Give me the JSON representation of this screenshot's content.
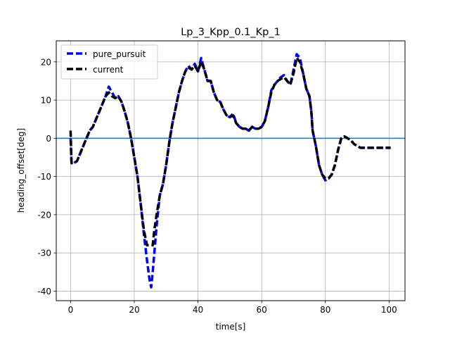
{
  "chart_data": {
    "type": "line",
    "title": "Lp_3_Kpp_0.1_Kp_1",
    "xlabel": "time[s]",
    "ylabel": "heading_offset[deg]",
    "xlim": [
      -4.5,
      105
    ],
    "ylim": [
      -42.5,
      25.5
    ],
    "xticks": [
      0,
      20,
      40,
      60,
      80,
      100
    ],
    "yticks": [
      -40,
      -30,
      -20,
      -10,
      0,
      10,
      20
    ],
    "grid": true,
    "legend_position": "upper-left",
    "hline": {
      "y": 0,
      "color": "#1f77b4"
    },
    "series": [
      {
        "name": "pure_pursuit",
        "color": "#0000ff",
        "linestyle": "dashed",
        "x": [
          0,
          0.3,
          1,
          2,
          3,
          4,
          5,
          6,
          7,
          8,
          9,
          10,
          11,
          12,
          13,
          14,
          15,
          16,
          17,
          18,
          19,
          20,
          21,
          22,
          23,
          24,
          24.8,
          25.3,
          25.8,
          26.3,
          27,
          28,
          29,
          30,
          31,
          32,
          33,
          34,
          35,
          36,
          37,
          38,
          39,
          40,
          41,
          42,
          43,
          44,
          45,
          46,
          47,
          48,
          49,
          50,
          51,
          52,
          53,
          54,
          55,
          56,
          57,
          58,
          59,
          60,
          61,
          62,
          63,
          64,
          65,
          66,
          67,
          68,
          69,
          70,
          71,
          72,
          73,
          74,
          75,
          75.6,
          76,
          77,
          78,
          79,
          80,
          81,
          82,
          83,
          84,
          85,
          86,
          87,
          88,
          89,
          90,
          91,
          92,
          93,
          94,
          95,
          96,
          97,
          98,
          99,
          100,
          100.5
        ],
        "y": [
          0,
          -6.5,
          -6.5,
          -6,
          -4,
          -2,
          0,
          2,
          3,
          5,
          7,
          9,
          11,
          13.5,
          12,
          10.5,
          11,
          9.5,
          7,
          4,
          0,
          -5,
          -10,
          -17,
          -25,
          -32,
          -37,
          -39,
          -35,
          -30,
          -23,
          -15,
          -12,
          -7,
          -1,
          4,
          8,
          12,
          15,
          17.5,
          19,
          18,
          19.5,
          17.5,
          21,
          18,
          15,
          15,
          12,
          10,
          9.5,
          7.5,
          6,
          5.5,
          6.5,
          4,
          3,
          2.5,
          2.5,
          2,
          3,
          2.5,
          2.5,
          3,
          4.5,
          8,
          12.5,
          14,
          15,
          16,
          16.5,
          15,
          14,
          18,
          22,
          21,
          17,
          13,
          11,
          7,
          2,
          -2,
          -7,
          -9.5,
          -11,
          -10.5,
          -9.5,
          -7,
          -3,
          0,
          0.5,
          0,
          -0.5,
          -1.5,
          -2,
          -2.5,
          -2.5,
          -2.5,
          -2.5,
          -2.5,
          -2.5,
          -2.5,
          -2.5,
          -2.5,
          -2.5,
          -2.5
        ]
      },
      {
        "name": "current",
        "color": "#000000",
        "linestyle": "dashed",
        "x": [
          0,
          0.3,
          1,
          2,
          3,
          4,
          5,
          6,
          7,
          8,
          9,
          10,
          11,
          12,
          13,
          14,
          15,
          16,
          17,
          18,
          19,
          20,
          21,
          22,
          23,
          24,
          24.8,
          25.3,
          25.8,
          26.3,
          27,
          28,
          29,
          30,
          31,
          32,
          33,
          34,
          35,
          36,
          37,
          38,
          39,
          40,
          41,
          42,
          43,
          44,
          45,
          46,
          47,
          48,
          49,
          50,
          51,
          52,
          53,
          54,
          55,
          56,
          57,
          58,
          59,
          60,
          61,
          62,
          63,
          64,
          65,
          66,
          67,
          68,
          69,
          70,
          71,
          72,
          73,
          74,
          75,
          75.6,
          76,
          77,
          78,
          79,
          80,
          81,
          82,
          83,
          84,
          85,
          86,
          87,
          88,
          89,
          90,
          91,
          92,
          93,
          94,
          95,
          96,
          97,
          98,
          99,
          100,
          100.5
        ],
        "y": [
          2,
          -6.5,
          -6.5,
          -6,
          -4,
          -2,
          0,
          2,
          3,
          5,
          7,
          9,
          11,
          12,
          11,
          10.5,
          11,
          9.5,
          7,
          4,
          0,
          -5,
          -10,
          -17,
          -24,
          -28,
          -28,
          -28,
          -28,
          -24,
          -20,
          -15,
          -12,
          -7,
          -1,
          4,
          8,
          12,
          15,
          17.5,
          18.5,
          18,
          19,
          17.5,
          20,
          18,
          15,
          15,
          12,
          10,
          9.5,
          7.5,
          6,
          5.5,
          6,
          4,
          3,
          2.5,
          2.5,
          2,
          3,
          2.5,
          2.5,
          3,
          4.5,
          8,
          12,
          14,
          15,
          15.5,
          16,
          15,
          14,
          17,
          21,
          20,
          17,
          13,
          11,
          7,
          2,
          -2,
          -7,
          -9.5,
          -10.5,
          -10.5,
          -9.5,
          -7,
          -3,
          0,
          0.5,
          0,
          -0.5,
          -1.5,
          -2,
          -2.5,
          -2.5,
          -2.5,
          -2.5,
          -2.5,
          -2.5,
          -2.5,
          -2.5,
          -2.5,
          -2.5,
          -2.5
        ]
      }
    ]
  }
}
